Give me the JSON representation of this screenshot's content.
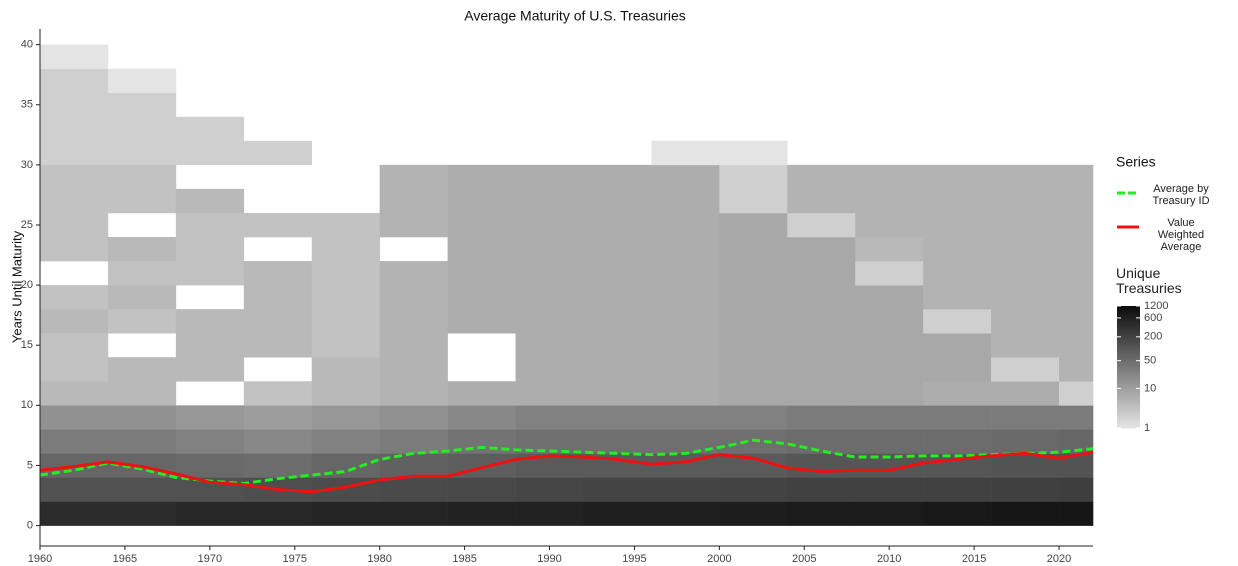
{
  "chart_data": {
    "type": "heatmap",
    "title": "Average Maturity of U.S. Treasuries",
    "y_label": "Years Until Maturity",
    "xlim": [
      1960,
      2022
    ],
    "ylim": [
      -1.7,
      41.3
    ],
    "xticks": [
      1960,
      1965,
      1970,
      1975,
      1980,
      1985,
      1990,
      1995,
      2000,
      2005,
      2010,
      2015,
      2020
    ],
    "yticks": [
      0,
      5,
      10,
      15,
      20,
      25,
      30,
      35,
      40
    ],
    "x_bins": [
      1960,
      1964,
      1968,
      1972,
      1976,
      1980,
      1984,
      1988,
      1992,
      1996,
      2000,
      2004,
      2008,
      2012,
      2016,
      2020,
      2022
    ],
    "y_bins": [
      0,
      2,
      4,
      6,
      8,
      10,
      12,
      14,
      16,
      18,
      20,
      22,
      24,
      26,
      28,
      30,
      32,
      34,
      36,
      38,
      40
    ],
    "z": [
      [
        400,
        400,
        450,
        450,
        500,
        500,
        550,
        550,
        600,
        600,
        650,
        700,
        700,
        750,
        800,
        800
      ],
      [
        120,
        120,
        120,
        130,
        140,
        150,
        160,
        170,
        180,
        180,
        190,
        200,
        200,
        200,
        210,
        220
      ],
      [
        60,
        60,
        55,
        50,
        60,
        70,
        80,
        90,
        90,
        90,
        90,
        100,
        100,
        100,
        110,
        110
      ],
      [
        30,
        30,
        25,
        20,
        25,
        30,
        40,
        45,
        45,
        45,
        45,
        50,
        50,
        50,
        55,
        60
      ],
      [
        15,
        15,
        12,
        10,
        12,
        15,
        20,
        25,
        25,
        25,
        25,
        30,
        30,
        30,
        30,
        30
      ],
      [
        4,
        4,
        null,
        3,
        4,
        5,
        6,
        6,
        6,
        6,
        7,
        7,
        7,
        6,
        6,
        2
      ],
      [
        3,
        4,
        4,
        null,
        4,
        5,
        null,
        6,
        6,
        6,
        7,
        7,
        7,
        7,
        2,
        5
      ],
      [
        3,
        null,
        4,
        4,
        3,
        5,
        null,
        6,
        6,
        6,
        7,
        7,
        7,
        7,
        5,
        5
      ],
      [
        4,
        3,
        4,
        4,
        3,
        5,
        6,
        6,
        6,
        6,
        7,
        7,
        7,
        2,
        5,
        5
      ],
      [
        3,
        4,
        null,
        4,
        3,
        5,
        6,
        6,
        6,
        6,
        7,
        7,
        7,
        5,
        5,
        5
      ],
      [
        null,
        3,
        3,
        4,
        3,
        5,
        6,
        6,
        6,
        6,
        7,
        7,
        2,
        5,
        5,
        5
      ],
      [
        3,
        4,
        3,
        null,
        3,
        null,
        6,
        6,
        6,
        6,
        7,
        7,
        4,
        5,
        5,
        5
      ],
      [
        3,
        null,
        3,
        3,
        3,
        5,
        6,
        6,
        6,
        6,
        7,
        2,
        5,
        5,
        5,
        5
      ],
      [
        3,
        3,
        4,
        null,
        null,
        5,
        6,
        6,
        6,
        6,
        2,
        5,
        5,
        5,
        5,
        5
      ],
      [
        3,
        3,
        null,
        null,
        null,
        5,
        6,
        6,
        6,
        6,
        2,
        5,
        5,
        5,
        5,
        5
      ],
      [
        2,
        2,
        2,
        2,
        null,
        null,
        null,
        null,
        null,
        1,
        1,
        null,
        null,
        null,
        null,
        null
      ],
      [
        2,
        2,
        2,
        null,
        null,
        null,
        null,
        null,
        null,
        null,
        null,
        null,
        null,
        null,
        null,
        null
      ],
      [
        2,
        2,
        null,
        null,
        null,
        null,
        null,
        null,
        null,
        null,
        null,
        null,
        null,
        null,
        null,
        null
      ],
      [
        2,
        1,
        null,
        null,
        null,
        null,
        null,
        null,
        null,
        null,
        null,
        null,
        null,
        null,
        null,
        null
      ],
      [
        1,
        null,
        null,
        null,
        null,
        null,
        null,
        null,
        null,
        null,
        null,
        null,
        null,
        null,
        null,
        null
      ]
    ],
    "colorbar": {
      "title": "Unique Treasuries",
      "lim": [
        1,
        1200
      ],
      "low_color": [
        228,
        228,
        228
      ],
      "high_color": [
        10,
        10,
        10
      ],
      "ticks": [
        1,
        10,
        50,
        200,
        600,
        1200
      ]
    },
    "legend_title": "Series",
    "series": [
      {
        "name": "Average by Treasury ID",
        "color": "#22ee22",
        "dashed": true,
        "x": [
          1960,
          1962,
          1964,
          1966,
          1968,
          1970,
          1972,
          1974,
          1976,
          1978,
          1980,
          1982,
          1984,
          1986,
          1988,
          1990,
          1992,
          1994,
          1996,
          1998,
          2000,
          2002,
          2004,
          2006,
          2008,
          2010,
          2012,
          2014,
          2016,
          2018,
          2020,
          2022
        ],
        "values": [
          4.2,
          4.6,
          5.2,
          4.7,
          4.0,
          3.7,
          3.5,
          3.9,
          4.2,
          4.5,
          5.5,
          6.0,
          6.2,
          6.5,
          6.3,
          6.2,
          6.1,
          6.0,
          5.9,
          6.0,
          6.5,
          7.1,
          6.8,
          6.2,
          5.7,
          5.7,
          5.8,
          5.8,
          5.9,
          6.0,
          6.1,
          6.4
        ]
      },
      {
        "name": "Value Weighted Average",
        "color": "#ee1111",
        "dashed": false,
        "x": [
          1960,
          1962,
          1964,
          1966,
          1968,
          1970,
          1972,
          1974,
          1976,
          1978,
          1980,
          1982,
          1984,
          1986,
          1988,
          1990,
          1992,
          1994,
          1996,
          1998,
          2000,
          2002,
          2004,
          2006,
          2008,
          2010,
          2012,
          2014,
          2016,
          2018,
          2020,
          2022
        ],
        "values": [
          4.6,
          4.9,
          5.3,
          4.9,
          4.3,
          3.6,
          3.4,
          3.0,
          2.8,
          3.2,
          3.8,
          4.1,
          4.1,
          4.8,
          5.5,
          5.8,
          5.7,
          5.5,
          5.1,
          5.3,
          5.9,
          5.6,
          4.8,
          4.5,
          4.6,
          4.6,
          5.2,
          5.5,
          5.8,
          6.0,
          5.6,
          6.1
        ]
      }
    ]
  }
}
